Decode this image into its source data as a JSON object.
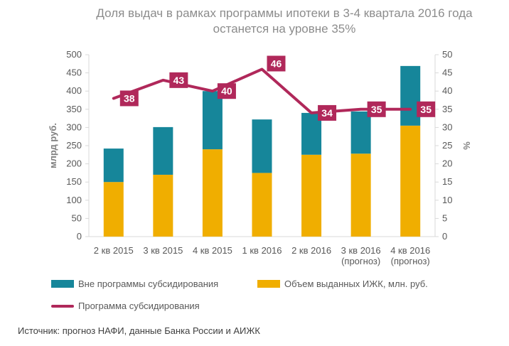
{
  "title_line1": "Доля выдач в рамках программы ипотеки в 3-4 квартала 2016 года",
  "title_line2": "останется на уровне 35%",
  "source": "Источник: прогноз НАФИ, данные Банка России и АИЖК",
  "colors": {
    "teal": "#16869a",
    "orange": "#f0ae00",
    "crimson": "#b0285a",
    "axis": "#d9d9d9"
  },
  "chart_data": {
    "type": "bar",
    "stacked": true,
    "categories": [
      [
        "2 кв 2015"
      ],
      [
        "3 кв 2015"
      ],
      [
        "4 кв 2015"
      ],
      [
        "1 кв 2016"
      ],
      [
        "2 кв 2016"
      ],
      [
        "3 кв 2016",
        "(прогноз)"
      ],
      [
        "4 кв 2016",
        "(прогноз)"
      ]
    ],
    "series": [
      {
        "name": "Объем выданных ИЖК, млн. руб.",
        "axis": "left",
        "type": "bar",
        "values": [
          150,
          170,
          240,
          175,
          225,
          228,
          305
        ]
      },
      {
        "name": "Вне программы субсидирования",
        "axis": "left",
        "type": "bar",
        "values": [
          92,
          131,
          160,
          147,
          115,
          116,
          164
        ]
      },
      {
        "name": "Программа субсидирования",
        "axis": "right",
        "type": "line",
        "values": [
          38,
          43,
          40,
          46,
          34,
          35,
          35
        ]
      }
    ],
    "ylabel": "млрд руб.",
    "y2label": "%",
    "ylim": [
      0,
      500
    ],
    "y2lim": [
      0,
      50
    ],
    "yticks": [
      0,
      50,
      100,
      150,
      200,
      250,
      300,
      350,
      400,
      450,
      500
    ],
    "y2ticks": [
      0,
      5,
      10,
      15,
      20,
      25,
      30,
      35,
      40,
      45,
      50
    ],
    "grid": false,
    "legend": "bottom"
  }
}
